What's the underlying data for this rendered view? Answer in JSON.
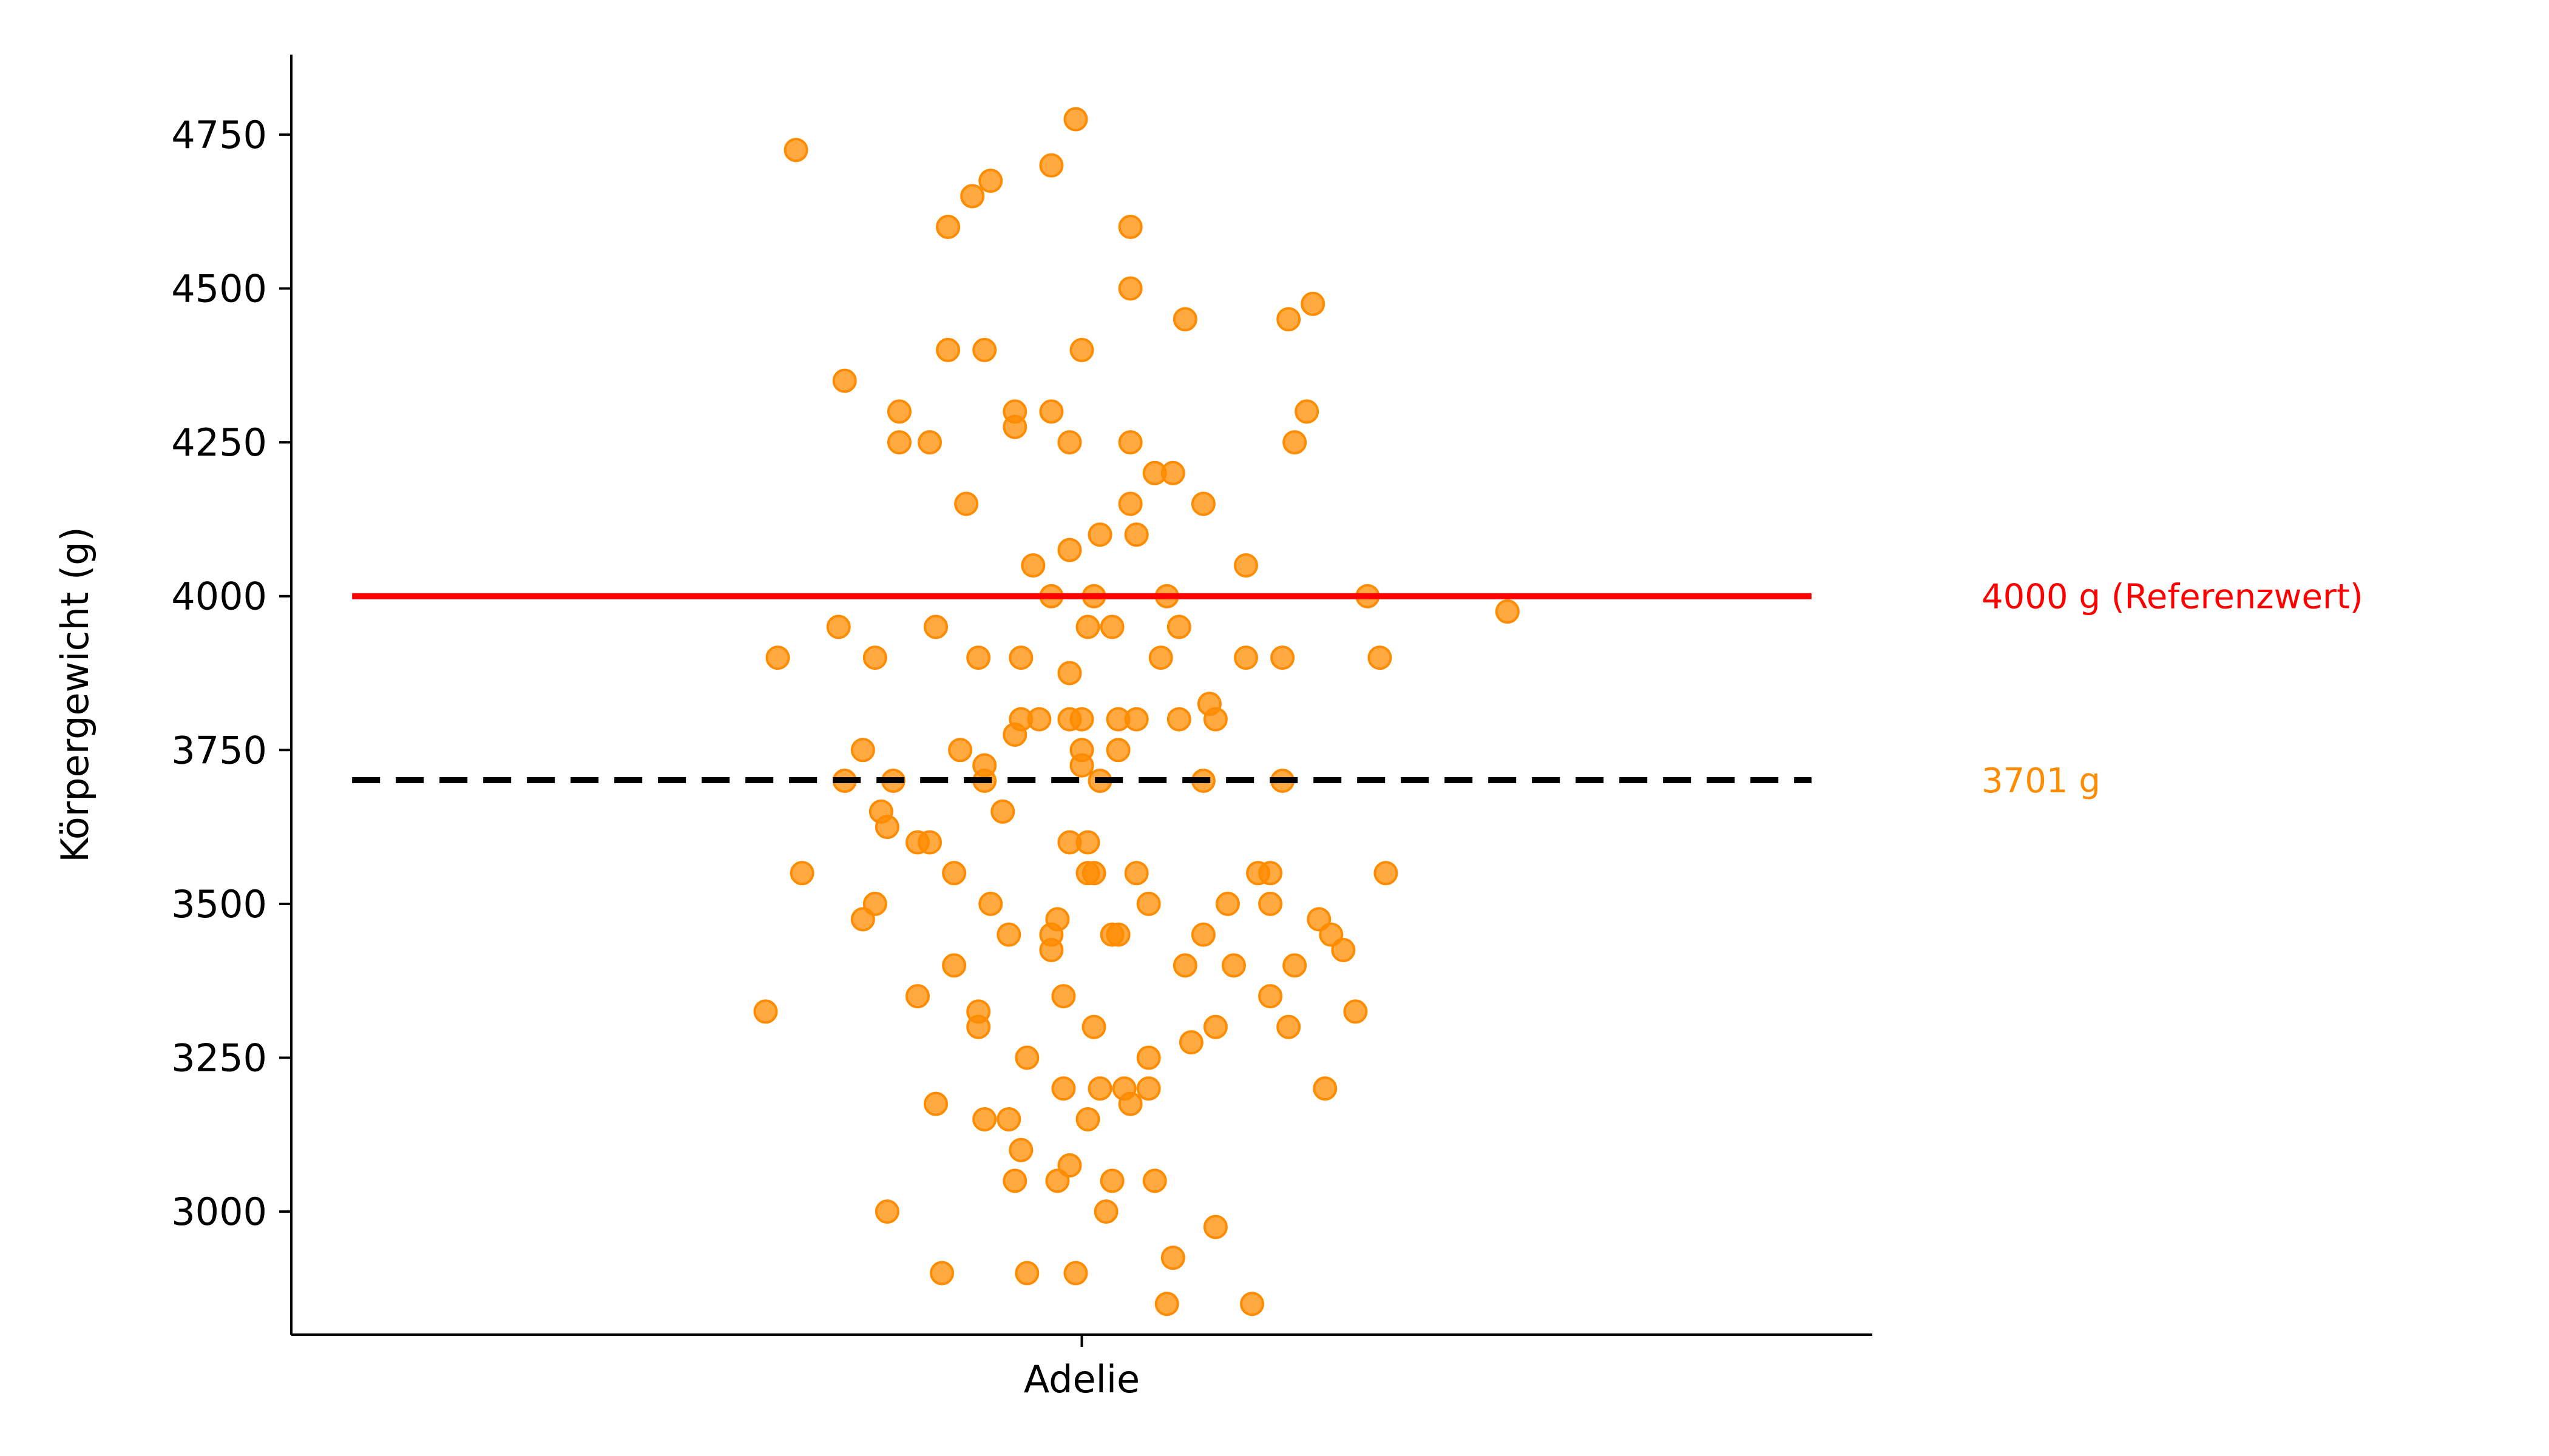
{
  "chart_data": {
    "type": "scatter",
    "title": "",
    "xlabel": "",
    "ylabel": "Körpergewicht (g)",
    "categories": [
      "Adelie"
    ],
    "ylim": [
      2800,
      4880
    ],
    "yticks": [
      3000,
      3250,
      3500,
      3750,
      4000,
      4250,
      4500,
      4750
    ],
    "grid": false,
    "point_color": "#ff8c00",
    "series": [
      {
        "category": "Adelie",
        "points": [
          {
            "x": -0.5,
            "y": 3900
          },
          {
            "x": -0.47,
            "y": 4725
          },
          {
            "x": -0.46,
            "y": 3550
          },
          {
            "x": -0.52,
            "y": 3325
          },
          {
            "x": -0.39,
            "y": 4350
          },
          {
            "x": -0.4,
            "y": 3950
          },
          {
            "x": -0.39,
            "y": 3700
          },
          {
            "x": -0.36,
            "y": 3750
          },
          {
            "x": -0.34,
            "y": 3900
          },
          {
            "x": -0.36,
            "y": 3475
          },
          {
            "x": -0.34,
            "y": 3500
          },
          {
            "x": -0.33,
            "y": 3650
          },
          {
            "x": -0.32,
            "y": 3625
          },
          {
            "x": -0.31,
            "y": 3700
          },
          {
            "x": -0.32,
            "y": 3000
          },
          {
            "x": -0.3,
            "y": 4300
          },
          {
            "x": -0.3,
            "y": 4250
          },
          {
            "x": -0.27,
            "y": 3350
          },
          {
            "x": -0.27,
            "y": 3600
          },
          {
            "x": -0.25,
            "y": 3600
          },
          {
            "x": -0.25,
            "y": 4250
          },
          {
            "x": -0.24,
            "y": 3950
          },
          {
            "x": -0.24,
            "y": 3175
          },
          {
            "x": -0.23,
            "y": 2900
          },
          {
            "x": -0.22,
            "y": 4400
          },
          {
            "x": -0.22,
            "y": 4600
          },
          {
            "x": -0.21,
            "y": 3550
          },
          {
            "x": -0.21,
            "y": 3400
          },
          {
            "x": -0.2,
            "y": 3750
          },
          {
            "x": -0.19,
            "y": 4150
          },
          {
            "x": -0.18,
            "y": 4650
          },
          {
            "x": -0.17,
            "y": 3900
          },
          {
            "x": -0.17,
            "y": 3300
          },
          {
            "x": -0.17,
            "y": 3325
          },
          {
            "x": -0.16,
            "y": 3725
          },
          {
            "x": -0.16,
            "y": 3700
          },
          {
            "x": -0.16,
            "y": 3150
          },
          {
            "x": -0.15,
            "y": 4675
          },
          {
            "x": -0.16,
            "y": 4400
          },
          {
            "x": -0.15,
            "y": 3500
          },
          {
            "x": -0.13,
            "y": 3650
          },
          {
            "x": -0.12,
            "y": 3150
          },
          {
            "x": -0.12,
            "y": 3450
          },
          {
            "x": -0.11,
            "y": 3050
          },
          {
            "x": -0.11,
            "y": 3775
          },
          {
            "x": -0.11,
            "y": 4300
          },
          {
            "x": -0.11,
            "y": 4275
          },
          {
            "x": -0.1,
            "y": 3900
          },
          {
            "x": -0.1,
            "y": 3800
          },
          {
            "x": -0.1,
            "y": 3100
          },
          {
            "x": -0.09,
            "y": 3250
          },
          {
            "x": -0.09,
            "y": 2900
          },
          {
            "x": -0.08,
            "y": 4050
          },
          {
            "x": -0.07,
            "y": 3800
          },
          {
            "x": -0.05,
            "y": 3450
          },
          {
            "x": -0.05,
            "y": 3425
          },
          {
            "x": -0.05,
            "y": 4000
          },
          {
            "x": -0.05,
            "y": 4300
          },
          {
            "x": -0.05,
            "y": 4700
          },
          {
            "x": -0.04,
            "y": 3475
          },
          {
            "x": -0.04,
            "y": 3050
          },
          {
            "x": -0.03,
            "y": 3200
          },
          {
            "x": -0.03,
            "y": 3350
          },
          {
            "x": -0.02,
            "y": 4250
          },
          {
            "x": -0.02,
            "y": 3875
          },
          {
            "x": -0.02,
            "y": 3800
          },
          {
            "x": -0.02,
            "y": 3600
          },
          {
            "x": -0.02,
            "y": 4075
          },
          {
            "x": -0.02,
            "y": 3075
          },
          {
            "x": -0.01,
            "y": 2900
          },
          {
            "x": -0.01,
            "y": 4775
          },
          {
            "x": 0.0,
            "y": 3725
          },
          {
            "x": 0.0,
            "y": 3750
          },
          {
            "x": 0.0,
            "y": 3800
          },
          {
            "x": 0.0,
            "y": 4400
          },
          {
            "x": 0.01,
            "y": 3950
          },
          {
            "x": 0.01,
            "y": 3550
          },
          {
            "x": 0.01,
            "y": 3150
          },
          {
            "x": 0.01,
            "y": 3600
          },
          {
            "x": 0.02,
            "y": 3550
          },
          {
            "x": 0.02,
            "y": 4000
          },
          {
            "x": 0.02,
            "y": 3300
          },
          {
            "x": 0.03,
            "y": 3700
          },
          {
            "x": 0.03,
            "y": 3200
          },
          {
            "x": 0.03,
            "y": 4100
          },
          {
            "x": 0.04,
            "y": 3000
          },
          {
            "x": 0.05,
            "y": 3950
          },
          {
            "x": 0.05,
            "y": 3450
          },
          {
            "x": 0.05,
            "y": 3050
          },
          {
            "x": 0.06,
            "y": 3450
          },
          {
            "x": 0.06,
            "y": 3800
          },
          {
            "x": 0.06,
            "y": 3750
          },
          {
            "x": 0.07,
            "y": 3200
          },
          {
            "x": 0.08,
            "y": 4500
          },
          {
            "x": 0.08,
            "y": 4250
          },
          {
            "x": 0.08,
            "y": 4150
          },
          {
            "x": 0.08,
            "y": 3175
          },
          {
            "x": 0.08,
            "y": 4600
          },
          {
            "x": 0.09,
            "y": 3550
          },
          {
            "x": 0.09,
            "y": 4100
          },
          {
            "x": 0.09,
            "y": 3800
          },
          {
            "x": 0.11,
            "y": 3500
          },
          {
            "x": 0.11,
            "y": 3250
          },
          {
            "x": 0.11,
            "y": 3200
          },
          {
            "x": 0.12,
            "y": 3050
          },
          {
            "x": 0.12,
            "y": 4200
          },
          {
            "x": 0.13,
            "y": 3900
          },
          {
            "x": 0.14,
            "y": 4000
          },
          {
            "x": 0.14,
            "y": 2850
          },
          {
            "x": 0.15,
            "y": 4200
          },
          {
            "x": 0.15,
            "y": 2925
          },
          {
            "x": 0.16,
            "y": 3800
          },
          {
            "x": 0.16,
            "y": 3950
          },
          {
            "x": 0.17,
            "y": 4450
          },
          {
            "x": 0.17,
            "y": 3400
          },
          {
            "x": 0.18,
            "y": 3275
          },
          {
            "x": 0.2,
            "y": 3700
          },
          {
            "x": 0.2,
            "y": 4150
          },
          {
            "x": 0.2,
            "y": 3450
          },
          {
            "x": 0.21,
            "y": 3825
          },
          {
            "x": 0.22,
            "y": 3800
          },
          {
            "x": 0.22,
            "y": 2975
          },
          {
            "x": 0.22,
            "y": 3300
          },
          {
            "x": 0.24,
            "y": 3500
          },
          {
            "x": 0.25,
            "y": 3400
          },
          {
            "x": 0.27,
            "y": 4050
          },
          {
            "x": 0.27,
            "y": 3900
          },
          {
            "x": 0.28,
            "y": 2850
          },
          {
            "x": 0.29,
            "y": 3550
          },
          {
            "x": 0.31,
            "y": 3550
          },
          {
            "x": 0.31,
            "y": 3500
          },
          {
            "x": 0.31,
            "y": 3350
          },
          {
            "x": 0.33,
            "y": 3900
          },
          {
            "x": 0.33,
            "y": 3700
          },
          {
            "x": 0.34,
            "y": 3300
          },
          {
            "x": 0.34,
            "y": 4450
          },
          {
            "x": 0.35,
            "y": 3400
          },
          {
            "x": 0.35,
            "y": 4250
          },
          {
            "x": 0.37,
            "y": 4300
          },
          {
            "x": 0.38,
            "y": 4475
          },
          {
            "x": 0.39,
            "y": 3475
          },
          {
            "x": 0.4,
            "y": 3200
          },
          {
            "x": 0.41,
            "y": 3450
          },
          {
            "x": 0.43,
            "y": 3425
          },
          {
            "x": 0.45,
            "y": 3325
          },
          {
            "x": 0.47,
            "y": 4000
          },
          {
            "x": 0.49,
            "y": 3900
          },
          {
            "x": 0.5,
            "y": 3550
          },
          {
            "x": 0.7,
            "y": 3975
          }
        ]
      }
    ],
    "reference_lines": [
      {
        "value": 4000,
        "color": "#ff0000",
        "style": "solid",
        "label": "4000 g (Referenzwert)"
      },
      {
        "value": 3701,
        "color": "#000000",
        "style": "dashed",
        "label": "3701 g",
        "label_color": "#ff8c00"
      }
    ]
  }
}
